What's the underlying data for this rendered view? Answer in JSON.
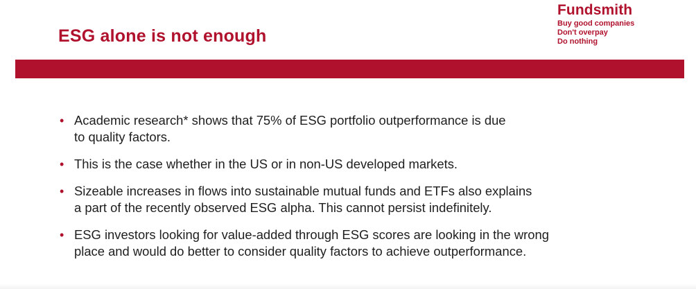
{
  "slide": {
    "title": "ESG alone is not enough",
    "brand": {
      "name": "Fundsmith",
      "taglines": [
        "Buy good companies",
        "Don't overpay",
        "Do nothing"
      ]
    },
    "bullets": [
      {
        "marker": "•",
        "lines": [
          "Academic research* shows that 75% of ESG portfolio outperformance is due",
          "to quality factors."
        ]
      },
      {
        "marker": "•",
        "lines": [
          "This is the case whether in the US or in non-US developed markets."
        ]
      },
      {
        "marker": "•",
        "lines": [
          "Sizeable increases in flows into sustainable mutual funds and ETFs also explains",
          "a part of the recently observed ESG alpha. This cannot persist indefinitely."
        ]
      },
      {
        "marker": "•",
        "lines": [
          "ESG investors looking for value-added through ESG scores are looking in the wrong",
          "place and would do better to consider quality factors to achieve outperformance."
        ]
      }
    ]
  },
  "colors": {
    "brand_red": "#b0122d",
    "body_text": "#1e1e1e",
    "background": "#ffffff"
  }
}
